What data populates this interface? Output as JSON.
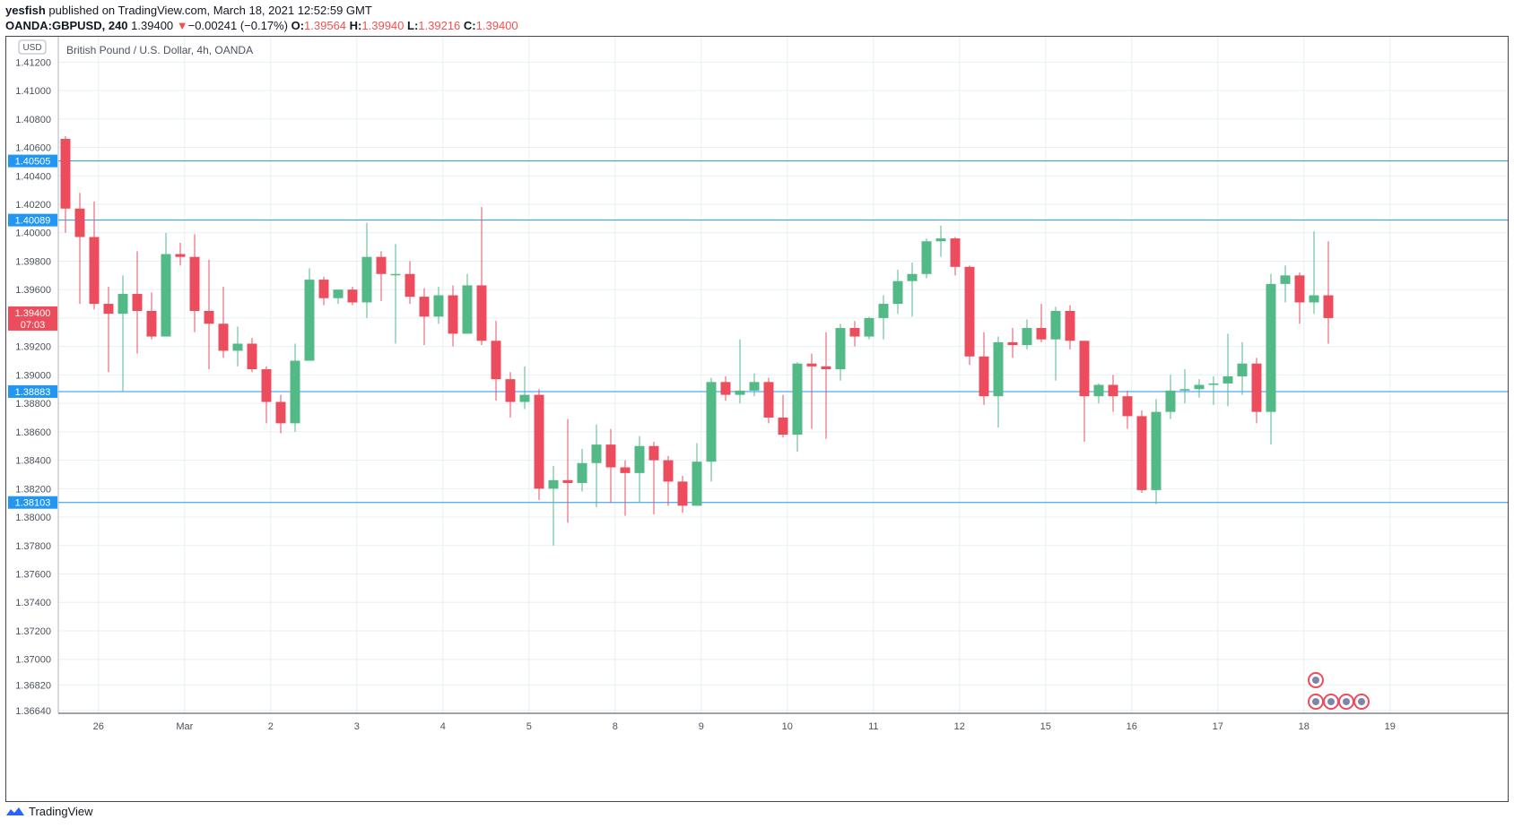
{
  "header": {
    "author": "yesfish",
    "published_text": " published on TradingView.com, March 18, 2021 12:52:59 GMT",
    "symbol": "OANDA:GBPUSD, 240",
    "last": "1.39400",
    "change": "−0.00241 (−0.17%)",
    "o_label": "O:",
    "o": "1.39564",
    "h_label": "H:",
    "h": "1.39940",
    "l_label": "L:",
    "l": "1.39216",
    "c_label": "C:",
    "c": "1.39400"
  },
  "footer": {
    "brand": "TradingView"
  },
  "colors": {
    "up": "#53b987",
    "down": "#eb4d5c",
    "level": "#2196f3",
    "grid": "#e6f0f3",
    "axis_text": "#4c525e"
  },
  "chart_data": {
    "type": "candlestick",
    "title": "British Pound / U.S. Dollar, 4h, OANDA",
    "currency_badge": "USD",
    "ylim": [
      1.3662,
      1.4124
    ],
    "y_ticks": [
      "1.41200",
      "1.41000",
      "1.40800",
      "1.40600",
      "1.40400",
      "1.40200",
      "1.40000",
      "1.39800",
      "1.39600",
      "1.39400",
      "1.39200",
      "1.39000",
      "1.38800",
      "1.38600",
      "1.38400",
      "1.38200",
      "1.38000",
      "1.37800",
      "1.37600",
      "1.37400",
      "1.37200",
      "1.37000",
      "1.36820",
      "1.36640"
    ],
    "x_ticks": [
      {
        "label": "26",
        "index": 2.3
      },
      {
        "label": "Mar",
        "index": 8.3
      },
      {
        "label": "2",
        "index": 14.3
      },
      {
        "label": "3",
        "index": 20.3
      },
      {
        "label": "4",
        "index": 26.3
      },
      {
        "label": "5",
        "index": 32.3
      },
      {
        "label": "8",
        "index": 38.3
      },
      {
        "label": "9",
        "index": 44.3
      },
      {
        "label": "10",
        "index": 50.3
      },
      {
        "label": "11",
        "index": 56.3
      },
      {
        "label": "12",
        "index": 62.3
      },
      {
        "label": "15",
        "index": 68.3
      },
      {
        "label": "16",
        "index": 74.3
      },
      {
        "label": "17",
        "index": 80.3
      },
      {
        "label": "18",
        "index": 86.3
      },
      {
        "label": "19",
        "index": 92.3
      }
    ],
    "levels": [
      "1.40505",
      "1.40089",
      "1.38883",
      "1.38103"
    ],
    "last_price": {
      "value": "1.39400",
      "countdown": "07:03"
    },
    "candles": [
      {
        "o": 1.4066,
        "h": 1.4068,
        "l": 1.4,
        "c": 1.4017
      },
      {
        "o": 1.4017,
        "h": 1.4028,
        "l": 1.395,
        "c": 1.3997
      },
      {
        "o": 1.3997,
        "h": 1.4022,
        "l": 1.3946,
        "c": 1.395
      },
      {
        "o": 1.395,
        "h": 1.3962,
        "l": 1.3902,
        "c": 1.3943
      },
      {
        "o": 1.3943,
        "h": 1.397,
        "l": 1.3888,
        "c": 1.3957
      },
      {
        "o": 1.3957,
        "h": 1.3987,
        "l": 1.3915,
        "c": 1.3945
      },
      {
        "o": 1.3945,
        "h": 1.3958,
        "l": 1.3925,
        "c": 1.3927
      },
      {
        "o": 1.3927,
        "h": 1.4,
        "l": 1.3927,
        "c": 1.3985
      },
      {
        "o": 1.3985,
        "h": 1.3993,
        "l": 1.3977,
        "c": 1.3983
      },
      {
        "o": 1.3983,
        "h": 1.3999,
        "l": 1.393,
        "c": 1.3945
      },
      {
        "o": 1.3945,
        "h": 1.3981,
        "l": 1.3904,
        "c": 1.3936
      },
      {
        "o": 1.3936,
        "h": 1.3962,
        "l": 1.3912,
        "c": 1.3917
      },
      {
        "o": 1.3917,
        "h": 1.3934,
        "l": 1.3906,
        "c": 1.3922
      },
      {
        "o": 1.3922,
        "h": 1.3926,
        "l": 1.3902,
        "c": 1.3904
      },
      {
        "o": 1.3904,
        "h": 1.3906,
        "l": 1.3866,
        "c": 1.3881
      },
      {
        "o": 1.3881,
        "h": 1.3886,
        "l": 1.3859,
        "c": 1.3866
      },
      {
        "o": 1.3866,
        "h": 1.3922,
        "l": 1.386,
        "c": 1.391
      },
      {
        "o": 1.391,
        "h": 1.3975,
        "l": 1.391,
        "c": 1.3967
      },
      {
        "o": 1.3967,
        "h": 1.3969,
        "l": 1.3949,
        "c": 1.3954
      },
      {
        "o": 1.3954,
        "h": 1.396,
        "l": 1.395,
        "c": 1.396
      },
      {
        "o": 1.396,
        "h": 1.3962,
        "l": 1.3949,
        "c": 1.3951
      },
      {
        "o": 1.3951,
        "h": 1.4007,
        "l": 1.394,
        "c": 1.3983
      },
      {
        "o": 1.3983,
        "h": 1.3987,
        "l": 1.3952,
        "c": 1.3971
      },
      {
        "o": 1.3971,
        "h": 1.3992,
        "l": 1.3922,
        "c": 1.3971
      },
      {
        "o": 1.3971,
        "h": 1.398,
        "l": 1.395,
        "c": 1.3955
      },
      {
        "o": 1.3955,
        "h": 1.3961,
        "l": 1.3921,
        "c": 1.3941
      },
      {
        "o": 1.3941,
        "h": 1.3962,
        "l": 1.3936,
        "c": 1.3956
      },
      {
        "o": 1.3956,
        "h": 1.3963,
        "l": 1.392,
        "c": 1.3929
      },
      {
        "o": 1.3929,
        "h": 1.3971,
        "l": 1.3929,
        "c": 1.3963
      },
      {
        "o": 1.3963,
        "h": 1.4018,
        "l": 1.3921,
        "c": 1.3924
      },
      {
        "o": 1.3924,
        "h": 1.3938,
        "l": 1.3882,
        "c": 1.3897
      },
      {
        "o": 1.3897,
        "h": 1.3902,
        "l": 1.387,
        "c": 1.3881
      },
      {
        "o": 1.3881,
        "h": 1.3906,
        "l": 1.3876,
        "c": 1.3886
      },
      {
        "o": 1.3886,
        "h": 1.389,
        "l": 1.3812,
        "c": 1.382
      },
      {
        "o": 1.382,
        "h": 1.3836,
        "l": 1.378,
        "c": 1.3826
      },
      {
        "o": 1.3826,
        "h": 1.3869,
        "l": 1.3796,
        "c": 1.3824
      },
      {
        "o": 1.3824,
        "h": 1.3848,
        "l": 1.3818,
        "c": 1.3838
      },
      {
        "o": 1.3838,
        "h": 1.3865,
        "l": 1.3807,
        "c": 1.3851
      },
      {
        "o": 1.3851,
        "h": 1.3862,
        "l": 1.381,
        "c": 1.3835
      },
      {
        "o": 1.3835,
        "h": 1.384,
        "l": 1.3801,
        "c": 1.3831
      },
      {
        "o": 1.3831,
        "h": 1.3857,
        "l": 1.381,
        "c": 1.385
      },
      {
        "o": 1.385,
        "h": 1.3853,
        "l": 1.3802,
        "c": 1.384
      },
      {
        "o": 1.384,
        "h": 1.3843,
        "l": 1.3808,
        "c": 1.3825
      },
      {
        "o": 1.3825,
        "h": 1.3829,
        "l": 1.3803,
        "c": 1.3808
      },
      {
        "o": 1.3808,
        "h": 1.3852,
        "l": 1.3808,
        "c": 1.3839
      },
      {
        "o": 1.3839,
        "h": 1.3898,
        "l": 1.3825,
        "c": 1.3895
      },
      {
        "o": 1.3895,
        "h": 1.3899,
        "l": 1.3882,
        "c": 1.3886
      },
      {
        "o": 1.3886,
        "h": 1.3925,
        "l": 1.388,
        "c": 1.3889
      },
      {
        "o": 1.3889,
        "h": 1.3901,
        "l": 1.3885,
        "c": 1.3895
      },
      {
        "o": 1.3895,
        "h": 1.3898,
        "l": 1.3866,
        "c": 1.387
      },
      {
        "o": 1.387,
        "h": 1.3886,
        "l": 1.3856,
        "c": 1.3858
      },
      {
        "o": 1.3858,
        "h": 1.3909,
        "l": 1.3846,
        "c": 1.3908
      },
      {
        "o": 1.3908,
        "h": 1.3915,
        "l": 1.3862,
        "c": 1.3906
      },
      {
        "o": 1.3906,
        "h": 1.393,
        "l": 1.3855,
        "c": 1.3904
      },
      {
        "o": 1.3904,
        "h": 1.3936,
        "l": 1.3896,
        "c": 1.3933
      },
      {
        "o": 1.3933,
        "h": 1.3938,
        "l": 1.392,
        "c": 1.3927
      },
      {
        "o": 1.3927,
        "h": 1.3941,
        "l": 1.3925,
        "c": 1.394
      },
      {
        "o": 1.394,
        "h": 1.3956,
        "l": 1.3925,
        "c": 1.395
      },
      {
        "o": 1.395,
        "h": 1.3974,
        "l": 1.3943,
        "c": 1.3966
      },
      {
        "o": 1.3966,
        "h": 1.3979,
        "l": 1.3941,
        "c": 1.3971
      },
      {
        "o": 1.3971,
        "h": 1.3996,
        "l": 1.3968,
        "c": 1.3994
      },
      {
        "o": 1.3994,
        "h": 1.4005,
        "l": 1.3983,
        "c": 1.3996
      },
      {
        "o": 1.3996,
        "h": 1.3997,
        "l": 1.397,
        "c": 1.3976
      },
      {
        "o": 1.3976,
        "h": 1.3977,
        "l": 1.3907,
        "c": 1.3913
      },
      {
        "o": 1.3913,
        "h": 1.393,
        "l": 1.3879,
        "c": 1.3885
      },
      {
        "o": 1.3885,
        "h": 1.3927,
        "l": 1.3863,
        "c": 1.3923
      },
      {
        "o": 1.3923,
        "h": 1.3933,
        "l": 1.3912,
        "c": 1.3921
      },
      {
        "o": 1.3921,
        "h": 1.3939,
        "l": 1.3918,
        "c": 1.3933
      },
      {
        "o": 1.3933,
        "h": 1.395,
        "l": 1.3923,
        "c": 1.3925
      },
      {
        "o": 1.3925,
        "h": 1.3948,
        "l": 1.3896,
        "c": 1.3945
      },
      {
        "o": 1.3945,
        "h": 1.3949,
        "l": 1.3918,
        "c": 1.3924
      },
      {
        "o": 1.3924,
        "h": 1.3924,
        "l": 1.3853,
        "c": 1.3885
      },
      {
        "o": 1.3885,
        "h": 1.3894,
        "l": 1.388,
        "c": 1.3893
      },
      {
        "o": 1.3893,
        "h": 1.39,
        "l": 1.3874,
        "c": 1.3885
      },
      {
        "o": 1.3885,
        "h": 1.3889,
        "l": 1.3862,
        "c": 1.3871
      },
      {
        "o": 1.3871,
        "h": 1.3875,
        "l": 1.3817,
        "c": 1.3819
      },
      {
        "o": 1.3819,
        "h": 1.3883,
        "l": 1.3809,
        "c": 1.3874
      },
      {
        "o": 1.3874,
        "h": 1.39,
        "l": 1.3869,
        "c": 1.3889
      },
      {
        "o": 1.3889,
        "h": 1.3904,
        "l": 1.388,
        "c": 1.389
      },
      {
        "o": 1.389,
        "h": 1.3897,
        "l": 1.3884,
        "c": 1.3893
      },
      {
        "o": 1.3893,
        "h": 1.3899,
        "l": 1.3879,
        "c": 1.3894
      },
      {
        "o": 1.3894,
        "h": 1.3929,
        "l": 1.3878,
        "c": 1.3899
      },
      {
        "o": 1.3899,
        "h": 1.3923,
        "l": 1.3886,
        "c": 1.3908
      },
      {
        "o": 1.3908,
        "h": 1.3912,
        "l": 1.3866,
        "c": 1.3874
      },
      {
        "o": 1.3874,
        "h": 1.3971,
        "l": 1.3851,
        "c": 1.3964
      },
      {
        "o": 1.3964,
        "h": 1.3977,
        "l": 1.3951,
        "c": 1.397
      },
      {
        "o": 1.397,
        "h": 1.3972,
        "l": 1.3936,
        "c": 1.3951
      },
      {
        "o": 1.3951,
        "h": 1.4001,
        "l": 1.3943,
        "c": 1.3956
      },
      {
        "o": 1.3956,
        "h": 1.3994,
        "l": 1.3922,
        "c": 1.394
      }
    ]
  }
}
